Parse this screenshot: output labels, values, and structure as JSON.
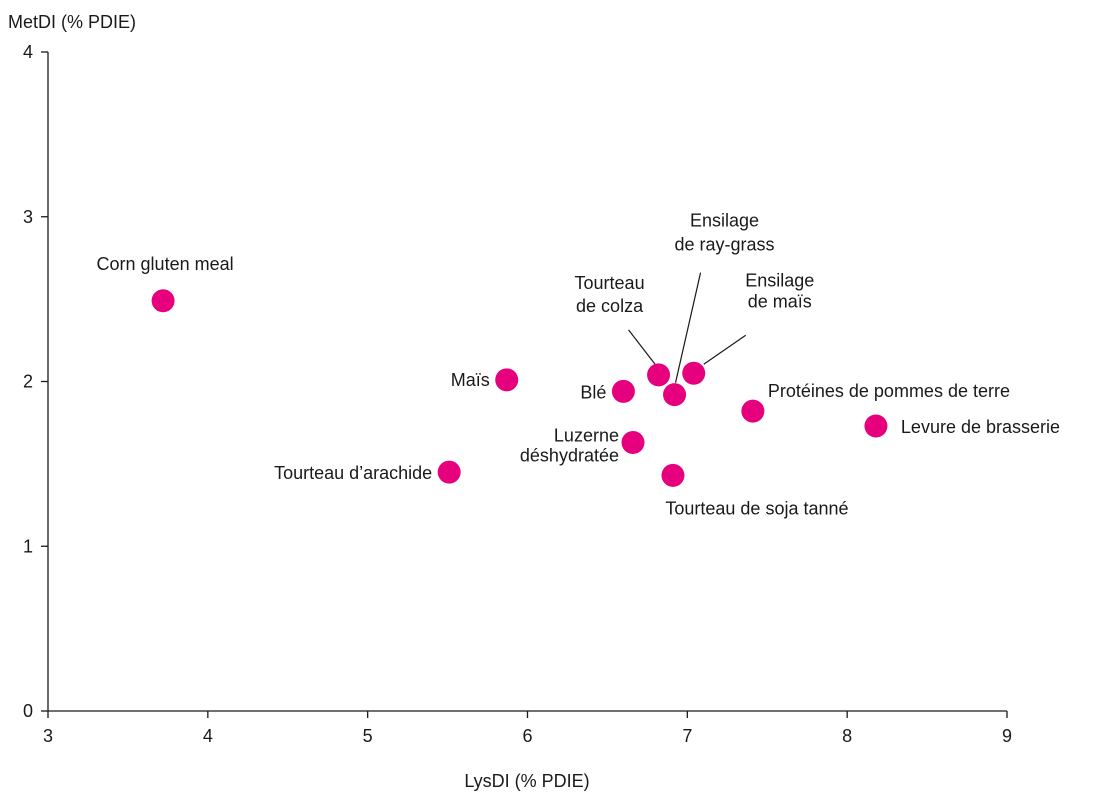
{
  "chart_data": {
    "type": "scatter",
    "title": "",
    "xlabel": "LysDI (% PDIE)",
    "ylabel": "MetDI (% PDIE)",
    "xlim": [
      3,
      9
    ],
    "ylim": [
      0,
      4
    ],
    "xticks": [
      3,
      4,
      5,
      6,
      7,
      8,
      9
    ],
    "yticks": [
      0,
      1,
      2,
      3,
      4
    ],
    "grid": false,
    "marker_color": "#e6007e",
    "points": [
      {
        "label": "Corn gluten meal",
        "x": 3.72,
        "y": 2.49
      },
      {
        "label": "Maïs",
        "x": 5.87,
        "y": 2.01
      },
      {
        "label": "Tourteau d’arachide",
        "x": 5.51,
        "y": 1.45
      },
      {
        "label": "Blé",
        "x": 6.6,
        "y": 1.94
      },
      {
        "label": "Luzerne déshydratée",
        "x": 6.66,
        "y": 1.63
      },
      {
        "label": "Tourteau de colza",
        "x": 6.82,
        "y": 2.04
      },
      {
        "label": "Ensilage de ray-grass",
        "x": 6.92,
        "y": 1.92
      },
      {
        "label": "Ensilage de maïs",
        "x": 7.04,
        "y": 2.05
      },
      {
        "label": "Tourteau de soja tanné",
        "x": 6.91,
        "y": 1.43
      },
      {
        "label": "Protéines de pommes de terre",
        "x": 7.41,
        "y": 1.82
      },
      {
        "label": "Levure de brasserie",
        "x": 8.18,
        "y": 1.73
      }
    ]
  }
}
